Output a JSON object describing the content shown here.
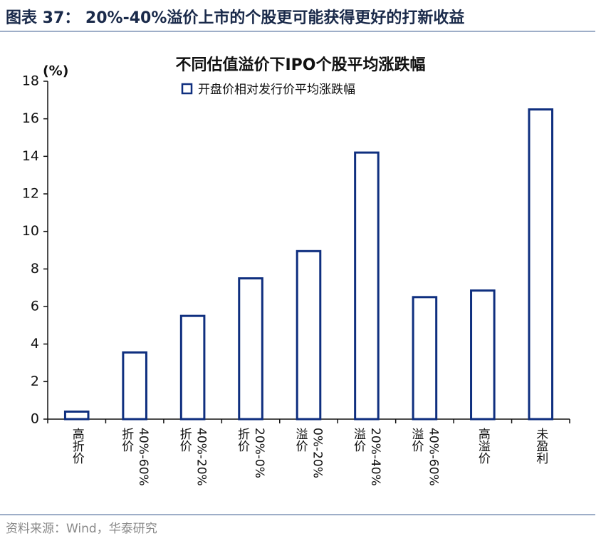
{
  "figure_title": "图表 37： 20%-40%溢价上市的个股更可能获得更好的打新收益",
  "source": "资料来源：Wind，华泰研究",
  "chart_data": {
    "type": "bar",
    "title": "不同估值溢价下IPO个股平均涨跌幅",
    "y_label": "(%)",
    "categories": [
      "高折价",
      "40%-60%折价",
      "40%-20%折价",
      "20%-0%折价",
      "0%-20%溢价",
      "20%-40%溢价",
      "40%-60%溢价",
      "高溢价",
      "未盈利"
    ],
    "series": [
      {
        "name": "开盘价相对发行价平均涨跌幅",
        "color": "#0f2f7f",
        "values": [
          0.4,
          3.55,
          5.5,
          7.5,
          8.95,
          14.2,
          6.5,
          6.85,
          16.5
        ]
      }
    ],
    "ylim": [
      0,
      18
    ],
    "yticks": [
      0,
      2,
      4,
      6,
      8,
      10,
      12,
      14,
      16,
      18
    ],
    "grid": false
  }
}
